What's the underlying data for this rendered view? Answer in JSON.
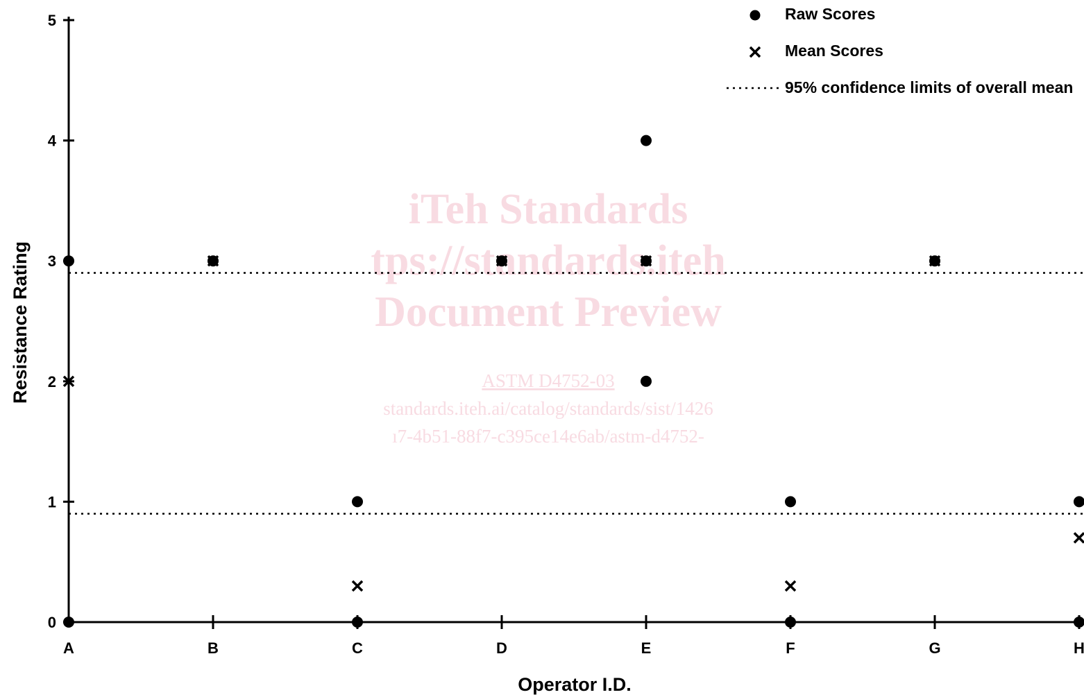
{
  "chart_data": {
    "type": "scatter",
    "xlabel": "Operator I.D.",
    "ylabel": "Resistance Rating",
    "categories": [
      "A",
      "B",
      "C",
      "D",
      "E",
      "F",
      "G",
      "H"
    ],
    "yticks": [
      "0",
      "1",
      "2",
      "3",
      "4",
      "5"
    ],
    "ylim": [
      0,
      5
    ],
    "grid": false,
    "legend_position": "top-right",
    "series": [
      {
        "name": "Raw Scores",
        "marker": "circle",
        "points": [
          {
            "x": "A",
            "y": 3
          },
          {
            "x": "A",
            "y": 0
          },
          {
            "x": "B",
            "y": 3
          },
          {
            "x": "C",
            "y": 1
          },
          {
            "x": "C",
            "y": 0
          },
          {
            "x": "D",
            "y": 3
          },
          {
            "x": "E",
            "y": 4
          },
          {
            "x": "E",
            "y": 3
          },
          {
            "x": "E",
            "y": 2
          },
          {
            "x": "F",
            "y": 1
          },
          {
            "x": "F",
            "y": 0
          },
          {
            "x": "G",
            "y": 3
          },
          {
            "x": "H",
            "y": 1
          },
          {
            "x": "H",
            "y": 0
          }
        ]
      },
      {
        "name": "Mean Scores",
        "marker": "x",
        "points": [
          {
            "x": "A",
            "y": 2
          },
          {
            "x": "B",
            "y": 3
          },
          {
            "x": "C",
            "y": 0.3
          },
          {
            "x": "D",
            "y": 3
          },
          {
            "x": "E",
            "y": 3
          },
          {
            "x": "F",
            "y": 0.3
          },
          {
            "x": "G",
            "y": 3
          },
          {
            "x": "H",
            "y": 0.7
          }
        ]
      }
    ],
    "reference_lines": {
      "name": "95% confidence limits of overall mean",
      "style": "dotted",
      "values": [
        2.9,
        0.9
      ]
    },
    "legend": {
      "raw": "Raw Scores",
      "mean": "Mean Scores",
      "ci": "95% confidence limits of overall mean"
    }
  },
  "watermark": {
    "line1": "iTeh Standards",
    "line2": "tps://standards.iteh",
    "line3": "Document Preview",
    "line4": "ASTM D4752-03",
    "line5": "standards.iteh.ai/catalog/standards/sist/1426",
    "line6": "ı7-4b51-88f7-c395ce14e6ab/astm-d4752-",
    "color": "#f8dbe2"
  }
}
